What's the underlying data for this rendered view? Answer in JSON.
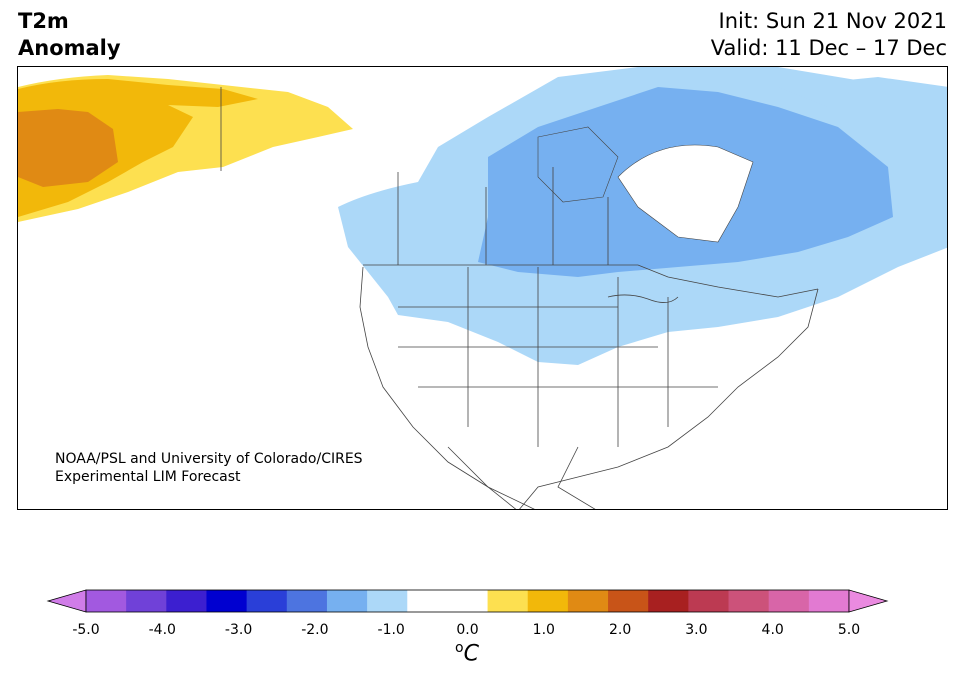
{
  "title": {
    "line1": "T2m",
    "line2": "Anomaly"
  },
  "dates": {
    "init": "Init: Sun 21 Nov 2021",
    "valid": "Valid: 11 Dec – 17 Dec"
  },
  "credit": {
    "line1": "NOAA/PSL and University of Colorado/CIRES",
    "line2": "Experimental LIM Forecast"
  },
  "colorbar": {
    "colors": [
      "#d07ce8",
      "#a259e0",
      "#7041d8",
      "#3c1fd0",
      "#0000d0",
      "#2a3fd8",
      "#4d74e0",
      "#76b0f0",
      "#acd8f8",
      "#ffffff",
      "#ffffff",
      "#fde050",
      "#f2b80a",
      "#e08a14",
      "#c85418",
      "#a82020",
      "#bc3a52",
      "#cc527a",
      "#d865a8",
      "#e27ad2",
      "#ea8ae0"
    ],
    "tick_labels": [
      "-5.0",
      "-4.0",
      "-3.0",
      "-2.0",
      "-1.0",
      "0.0",
      "1.0",
      "2.0",
      "3.0",
      "4.0",
      "5.0"
    ],
    "unit": "C",
    "unit_sup": "o"
  },
  "map_colors": {
    "warm1": "#fde050",
    "warm2": "#f2b80a",
    "warm3": "#e08a14",
    "cool1": "#acd8f8",
    "cool2": "#76b0f0",
    "land": "#ffffff",
    "border": "#444444"
  }
}
